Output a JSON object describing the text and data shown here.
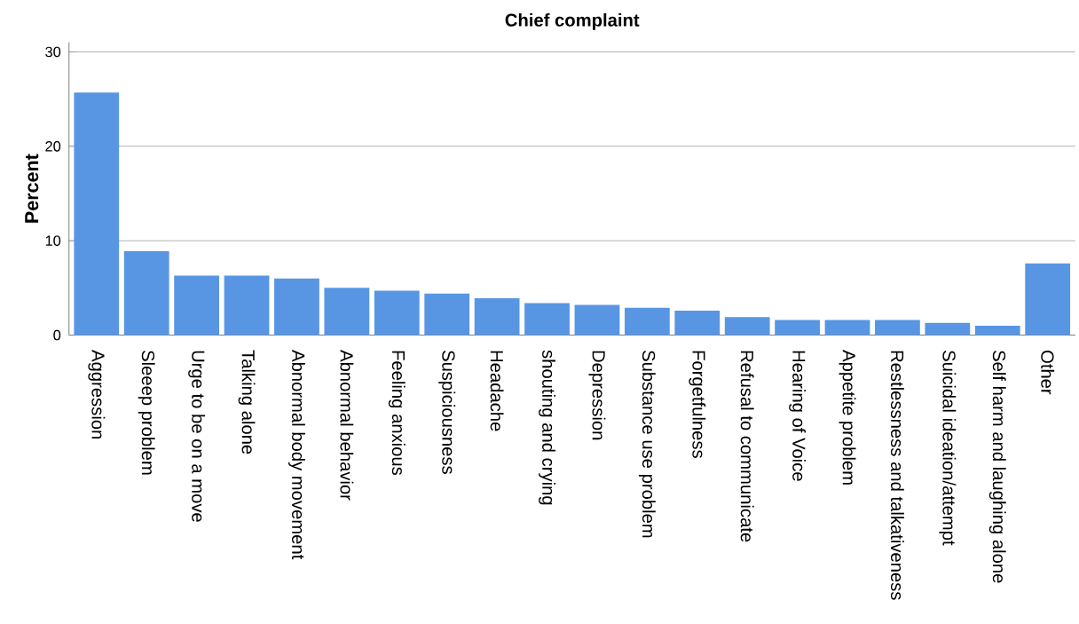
{
  "chart_data": {
    "type": "bar",
    "title": "Chief complaint",
    "ylabel": "Percent",
    "categories": [
      "Aggression",
      "Sleeep problem",
      "Urge to be on a move",
      "Talking alone",
      "Abnormal body movement",
      "Abnormal behavior",
      "Feeling anxious",
      "Suspiciousness",
      "Headache",
      "shouting and crying",
      "Depression",
      "Substance use problem",
      "Forgetfulness",
      "Refusal to communicate",
      "Hearing of Voice",
      "Appetite problem",
      "Restlessness and talkativeness",
      "Suicidal ideation/attempt",
      "Self harm and laughing alone",
      "Other"
    ],
    "values": [
      25.7,
      8.9,
      6.3,
      6.3,
      6.0,
      5.0,
      4.7,
      4.4,
      3.9,
      3.4,
      3.2,
      2.9,
      2.6,
      1.9,
      1.6,
      1.6,
      1.6,
      1.3,
      1.0,
      7.6
    ],
    "color": "#5896e4",
    "ylim": [
      0,
      31
    ],
    "yticks": [
      0,
      10,
      20,
      30
    ],
    "grid": "y"
  }
}
